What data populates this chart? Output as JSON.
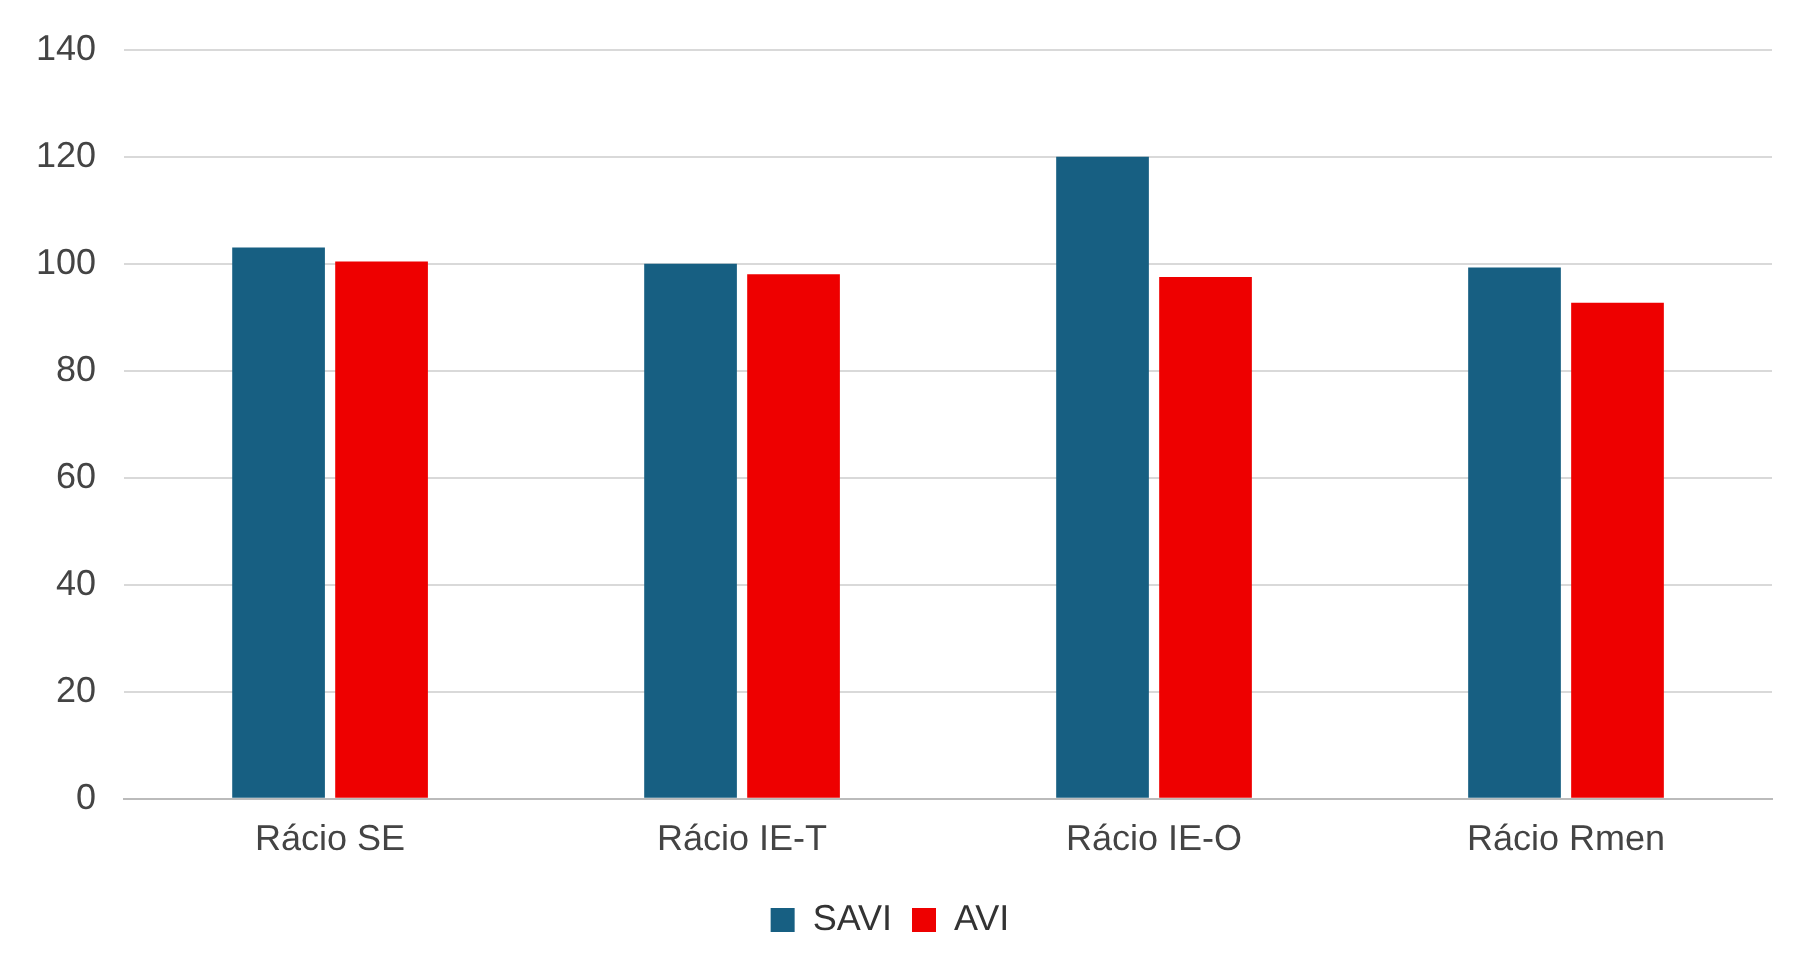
{
  "chart_data": {
    "type": "bar",
    "categories": [
      "Rácio SE",
      "Rácio IE-T",
      "Rácio IE-O",
      "Rácio Rmen"
    ],
    "series": [
      {
        "name": "SAVI",
        "color": "#175f82",
        "values": [
          103,
          100,
          120,
          99.3
        ]
      },
      {
        "name": "AVI",
        "color": "#ee0000",
        "values": [
          100.4,
          98,
          97.5,
          92.7
        ]
      }
    ],
    "ylim": [
      0,
      140
    ],
    "yticks": [
      0,
      20,
      40,
      60,
      80,
      100,
      120,
      140
    ],
    "grid": "y",
    "legend": "bottom"
  }
}
